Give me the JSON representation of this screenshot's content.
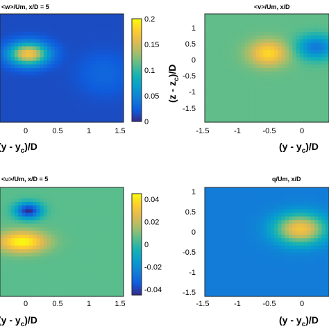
{
  "chart_data": [
    {
      "type": "heatmap",
      "title": "<w>/Um, x/D = 5",
      "xlabel": "(y - y_c)/D",
      "ylabel": "",
      "x_ticks": [
        "0",
        "0.5",
        "1",
        "1.5"
      ],
      "y_ticks": [],
      "colorbar": {
        "min": 0,
        "max": 0.2,
        "ticks": [
          "0",
          "0.05",
          "0.1",
          "0.15",
          "0.2"
        ]
      },
      "features": [
        {
          "x": 0.0,
          "y": 0.2,
          "sx": 0.3,
          "sy": 0.27,
          "value": 0.17
        },
        {
          "x": 1.2,
          "y": -0.3,
          "sx": 0.4,
          "sy": 0.5,
          "value": 0.03
        }
      ],
      "background": 0.015
    },
    {
      "type": "heatmap",
      "title": "<v>/Um, x/D",
      "xlabel": "(y - y_c)/D",
      "ylabel": "(z - z_c)/D",
      "x_ticks": [
        "-1.5",
        "-1",
        "-0.5",
        "0"
      ],
      "y_ticks": [
        "1",
        "0.5",
        "0",
        "-0.5",
        "-1",
        "-1.5"
      ],
      "colorbar": {
        "min": -0.06,
        "max": 0.06
      },
      "features": [
        {
          "x": -0.5,
          "y": 0.05,
          "sx": 0.3,
          "sy": 0.32,
          "value": 0.05
        },
        {
          "x": 0.25,
          "y": 0.2,
          "sx": 0.3,
          "sy": 0.3,
          "value": -0.035
        }
      ],
      "background": 0.008
    },
    {
      "type": "heatmap",
      "title": "<u>/Um, x/D = 5",
      "xlabel": "(y - y_c)/D",
      "ylabel": "",
      "x_ticks": [
        "0",
        "0.5",
        "1",
        "1.5"
      ],
      "y_ticks": [],
      "colorbar": {
        "min": -0.045,
        "max": 0.045,
        "ticks": [
          "0.04",
          "0.02",
          "0",
          "-0.02",
          "-0.04"
        ]
      },
      "features": [
        {
          "x": 0.0,
          "y": 0.55,
          "sx": 0.2,
          "sy": 0.15,
          "value": -0.045
        },
        {
          "x": -0.1,
          "y": -0.05,
          "sx": 0.38,
          "sy": 0.2,
          "value": 0.045
        }
      ],
      "background": 0.005
    },
    {
      "type": "heatmap",
      "title": "q/Um, x/D",
      "xlabel": "(y - y_c)/D",
      "ylabel": "",
      "x_ticks": [
        "-1.5",
        "-1",
        "-0.5",
        "0"
      ],
      "y_ticks": [
        "1",
        "0.5",
        "0",
        "-0.5",
        "-1",
        "-1.5"
      ],
      "colorbar": {
        "min": 0,
        "max": 1
      },
      "features": [
        {
          "x": 0.0,
          "y": 0.0,
          "sx": 0.4,
          "sy": 0.38,
          "value": 0.85
        }
      ],
      "background": 0.22
    }
  ]
}
